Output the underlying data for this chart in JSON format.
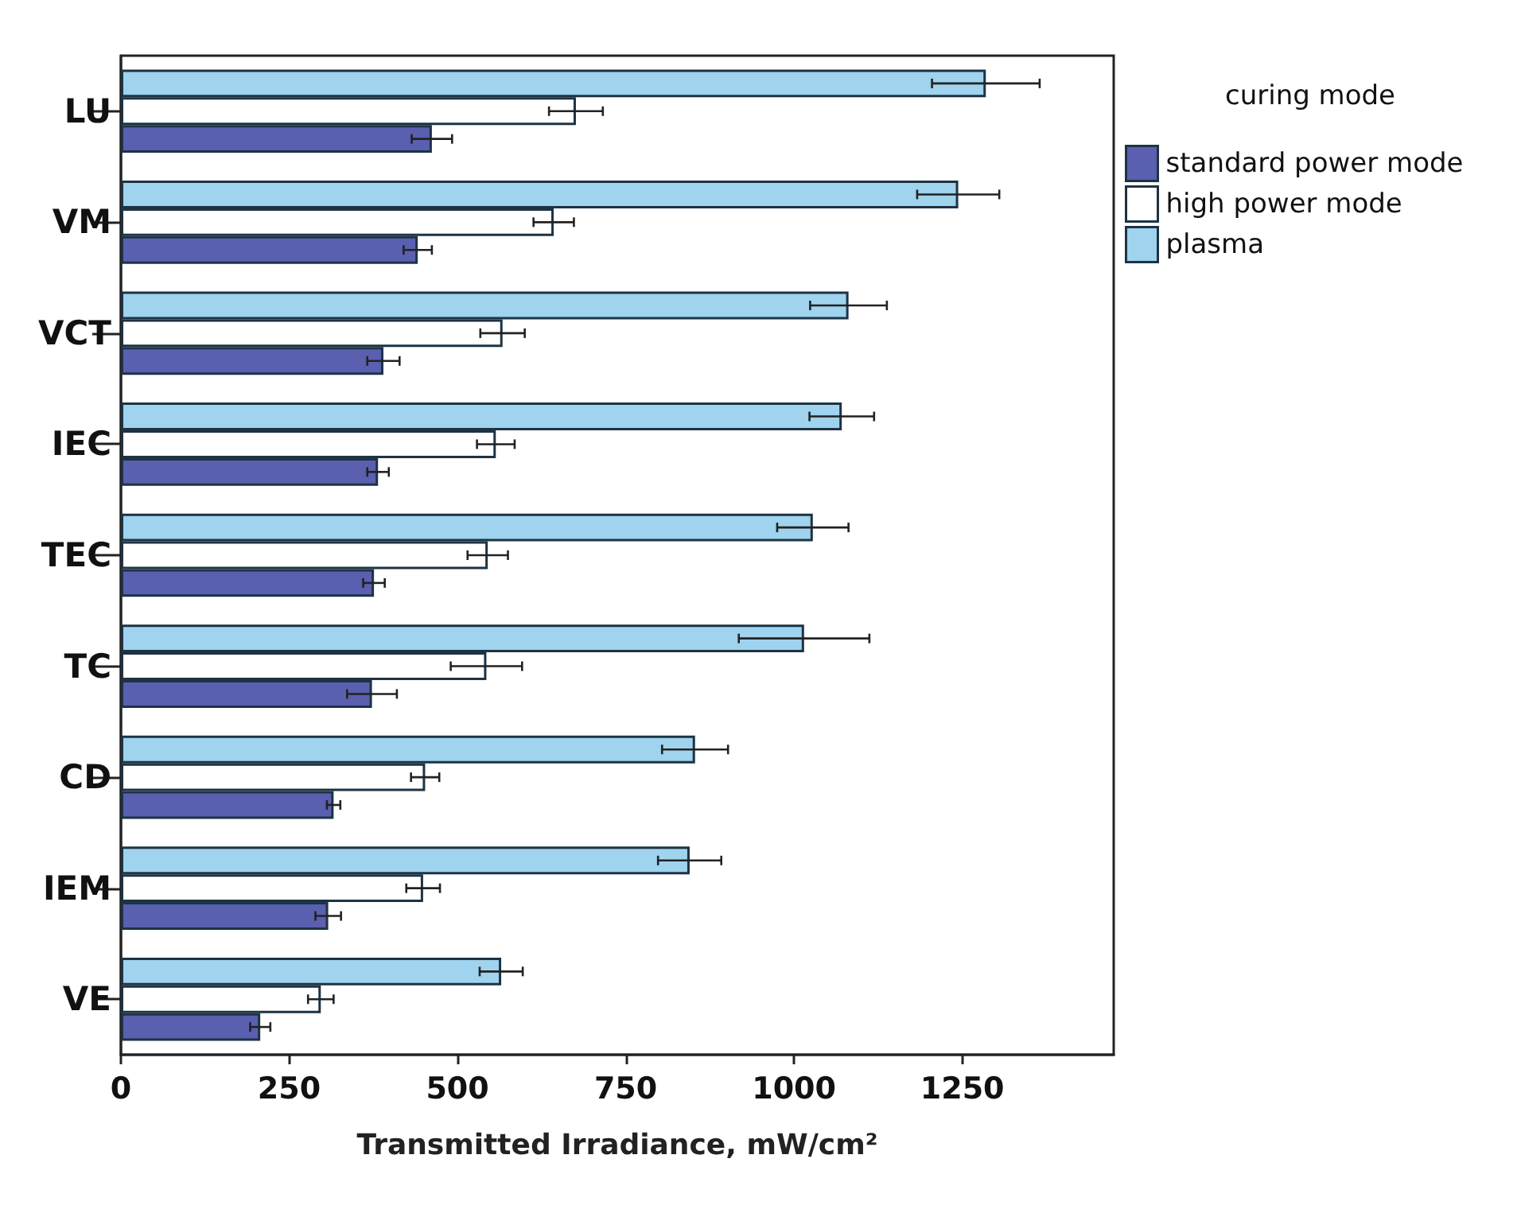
{
  "chart_data": {
    "type": "bar",
    "orientation": "horizontal",
    "xlabel": "Transmitted Irradiance, mW/cm²",
    "legend_title": "curing mode",
    "categories": [
      "LU",
      "VM",
      "VCT",
      "IEC",
      "TEC",
      "TC",
      "CD",
      "IEM",
      "VE"
    ],
    "series": [
      {
        "name": "standard power mode",
        "color": "#5a5fb0",
        "values": [
          462,
          441,
          390,
          382,
          376,
          373,
          316,
          308,
          207
        ],
        "errors": [
          30,
          21,
          24,
          16,
          16,
          37,
          10,
          19,
          15
        ]
      },
      {
        "name": "high power mode",
        "color": "#ffffff",
        "values": [
          676,
          643,
          567,
          557,
          545,
          543,
          452,
          449,
          297
        ],
        "errors": [
          40,
          30,
          33,
          28,
          30,
          53,
          21,
          25,
          19
        ]
      },
      {
        "name": "plasma",
        "color": "#9fd3ee",
        "values": [
          1285,
          1244,
          1081,
          1071,
          1028,
          1015,
          853,
          845,
          565
        ],
        "errors": [
          80,
          61,
          57,
          48,
          53,
          97,
          49,
          47,
          32
        ]
      }
    ],
    "xlim": [
      0,
      1475
    ],
    "xticks": [
      0,
      250,
      500,
      750,
      1000,
      1250
    ],
    "grid": false,
    "legend": "top right"
  }
}
